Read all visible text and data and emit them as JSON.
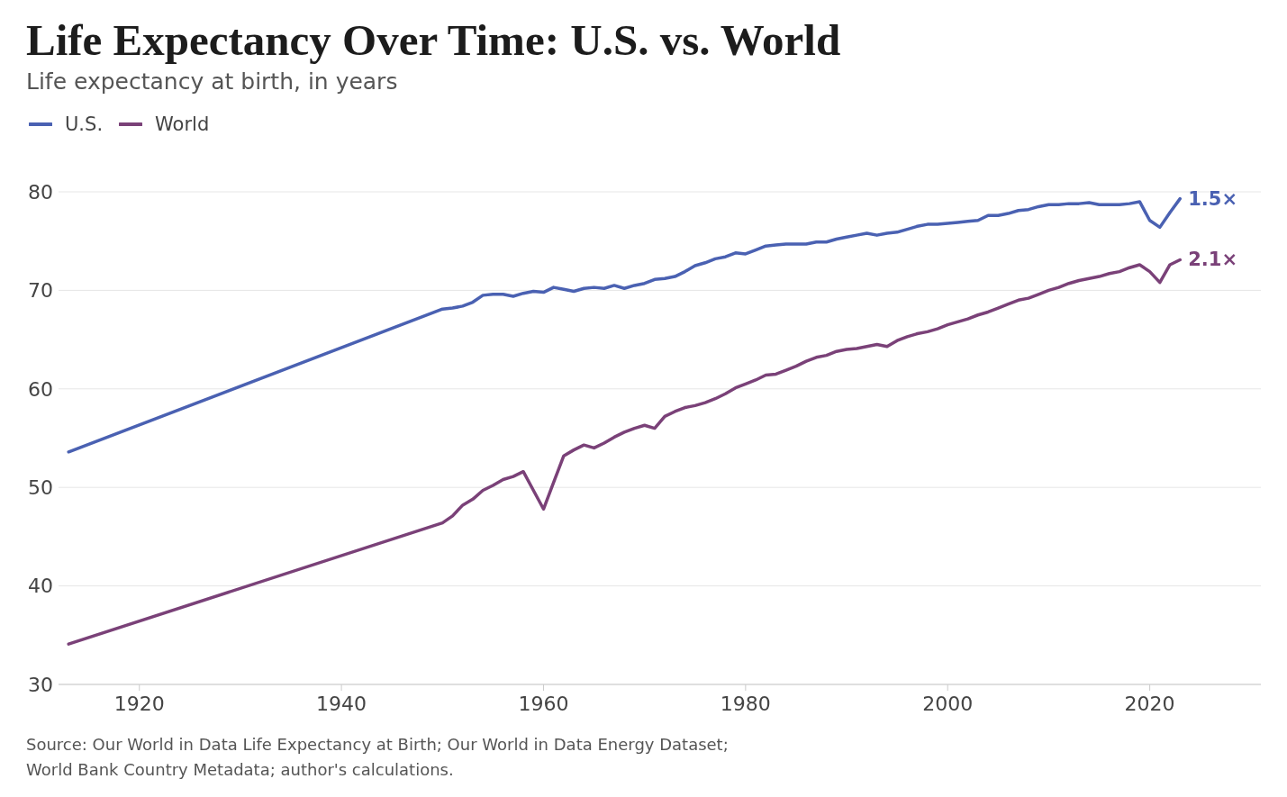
{
  "chart_data": {
    "type": "line",
    "title": "Life Expectancy Over Time: U.S. vs. World",
    "subtitle": "Life expectancy at birth, in years",
    "x": [
      1913,
      1950,
      1951,
      1952,
      1953,
      1954,
      1955,
      1956,
      1957,
      1958,
      1959,
      1960,
      1961,
      1962,
      1963,
      1964,
      1965,
      1966,
      1967,
      1968,
      1969,
      1970,
      1971,
      1972,
      1973,
      1974,
      1975,
      1976,
      1977,
      1978,
      1979,
      1980,
      1981,
      1982,
      1983,
      1984,
      1985,
      1986,
      1987,
      1988,
      1989,
      1990,
      1991,
      1992,
      1993,
      1994,
      1995,
      1996,
      1997,
      1998,
      1999,
      2000,
      2001,
      2002,
      2003,
      2004,
      2005,
      2006,
      2007,
      2008,
      2009,
      2010,
      2011,
      2012,
      2013,
      2014,
      2015,
      2016,
      2017,
      2018,
      2019,
      2020,
      2021,
      2022,
      2023
    ],
    "series": [
      {
        "name": "U.S.",
        "color": "#4a61b2",
        "values": [
          53.6,
          68.1,
          68.2,
          68.4,
          68.8,
          69.5,
          69.6,
          69.6,
          69.4,
          69.7,
          69.9,
          69.8,
          70.3,
          70.1,
          69.9,
          70.2,
          70.3,
          70.2,
          70.5,
          70.2,
          70.5,
          70.7,
          71.1,
          71.2,
          71.4,
          71.9,
          72.5,
          72.8,
          73.2,
          73.4,
          73.8,
          73.7,
          74.1,
          74.5,
          74.6,
          74.7,
          74.7,
          74.7,
          74.9,
          74.9,
          75.2,
          75.4,
          75.6,
          75.8,
          75.6,
          75.8,
          75.9,
          76.2,
          76.5,
          76.7,
          76.7,
          76.8,
          76.9,
          77.0,
          77.1,
          77.6,
          77.6,
          77.8,
          78.1,
          78.2,
          78.5,
          78.7,
          78.7,
          78.8,
          78.8,
          78.9,
          78.7,
          78.7,
          78.7,
          78.8,
          79.0,
          77.1,
          76.4,
          77.9,
          79.3
        ]
      },
      {
        "name": "World",
        "color": "#7a4178",
        "values": [
          34.1,
          46.4,
          47.1,
          48.2,
          48.8,
          49.7,
          50.2,
          50.8,
          51.1,
          51.6,
          49.7,
          47.8,
          50.5,
          53.2,
          53.8,
          54.3,
          54.0,
          54.5,
          55.1,
          55.6,
          56.0,
          56.3,
          56.0,
          57.2,
          57.7,
          58.1,
          58.3,
          58.6,
          59.0,
          59.5,
          60.1,
          60.5,
          60.9,
          61.4,
          61.5,
          61.9,
          62.3,
          62.8,
          63.2,
          63.4,
          63.8,
          64.0,
          64.1,
          64.3,
          64.5,
          64.3,
          64.9,
          65.3,
          65.6,
          65.8,
          66.1,
          66.5,
          66.8,
          67.1,
          67.5,
          67.8,
          68.2,
          68.6,
          69.0,
          69.2,
          69.6,
          70.0,
          70.3,
          70.7,
          71.0,
          71.2,
          71.4,
          71.7,
          71.9,
          72.3,
          72.6,
          71.9,
          70.8,
          72.6,
          73.1
        ]
      }
    ],
    "xlim": [
      1912,
      2031
    ],
    "xticks": [
      1920,
      1940,
      1960,
      1980,
      2000,
      2020
    ],
    "ylim": [
      30,
      80
    ],
    "yticks": [
      30,
      40,
      50,
      60,
      70,
      80
    ],
    "grid": "y",
    "legend": "top left",
    "marker": "none",
    "line_style": "solid",
    "annotations": [
      {
        "text": "1.5×",
        "x": 2023,
        "y": 79.3
      },
      {
        "text": "2.1×",
        "x": 2023,
        "y": 73.1
      },
      "Source: Our World in Data Life Expectancy at Birth; Our World in Data Energy Dataset; World Bank Country Metadata; author's calculations."
    ]
  }
}
